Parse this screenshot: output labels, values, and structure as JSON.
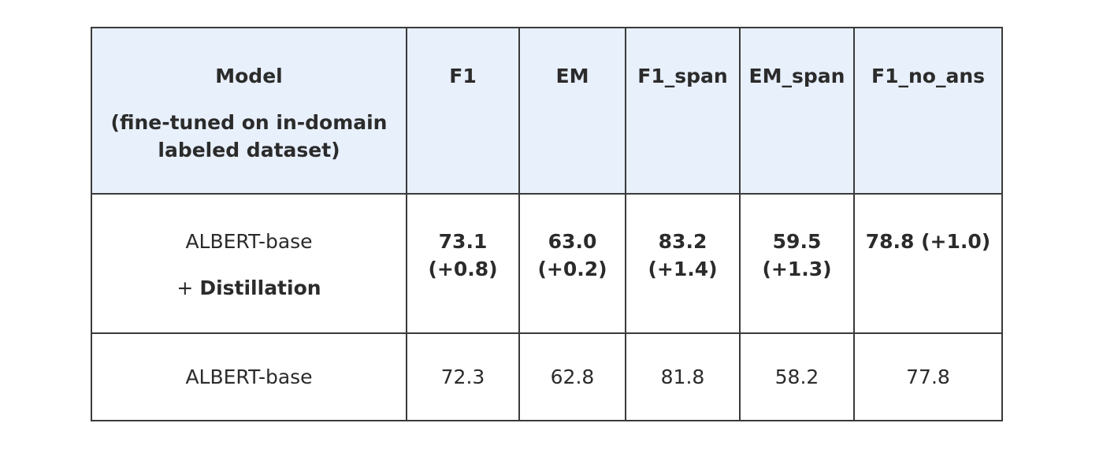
{
  "table": {
    "headers": {
      "model_line1": "Model",
      "model_line2": "(fine-tuned on in-domain",
      "model_line3": "labeled dataset)",
      "columns": [
        "F1",
        "EM",
        "F1_span",
        "EM_span",
        "F1_no_ans"
      ]
    },
    "rows": [
      {
        "model_line1": "ALBERT-base",
        "model_prefix": "+ ",
        "model_line2": "Distillation",
        "cells": [
          {
            "value": "73.1",
            "delta": "(+0.8)"
          },
          {
            "value": "63.0",
            "delta": "(+0.2)"
          },
          {
            "value": "83.2",
            "delta": "(+1.4)"
          },
          {
            "value": "59.5",
            "delta": "(+1.3)"
          },
          {
            "value": "78.8 (+1.0)"
          }
        ]
      },
      {
        "model_line1": "ALBERT-base",
        "cells": [
          {
            "value": "72.3"
          },
          {
            "value": "62.8"
          },
          {
            "value": "81.8"
          },
          {
            "value": "58.2"
          },
          {
            "value": "77.8"
          }
        ]
      }
    ]
  }
}
